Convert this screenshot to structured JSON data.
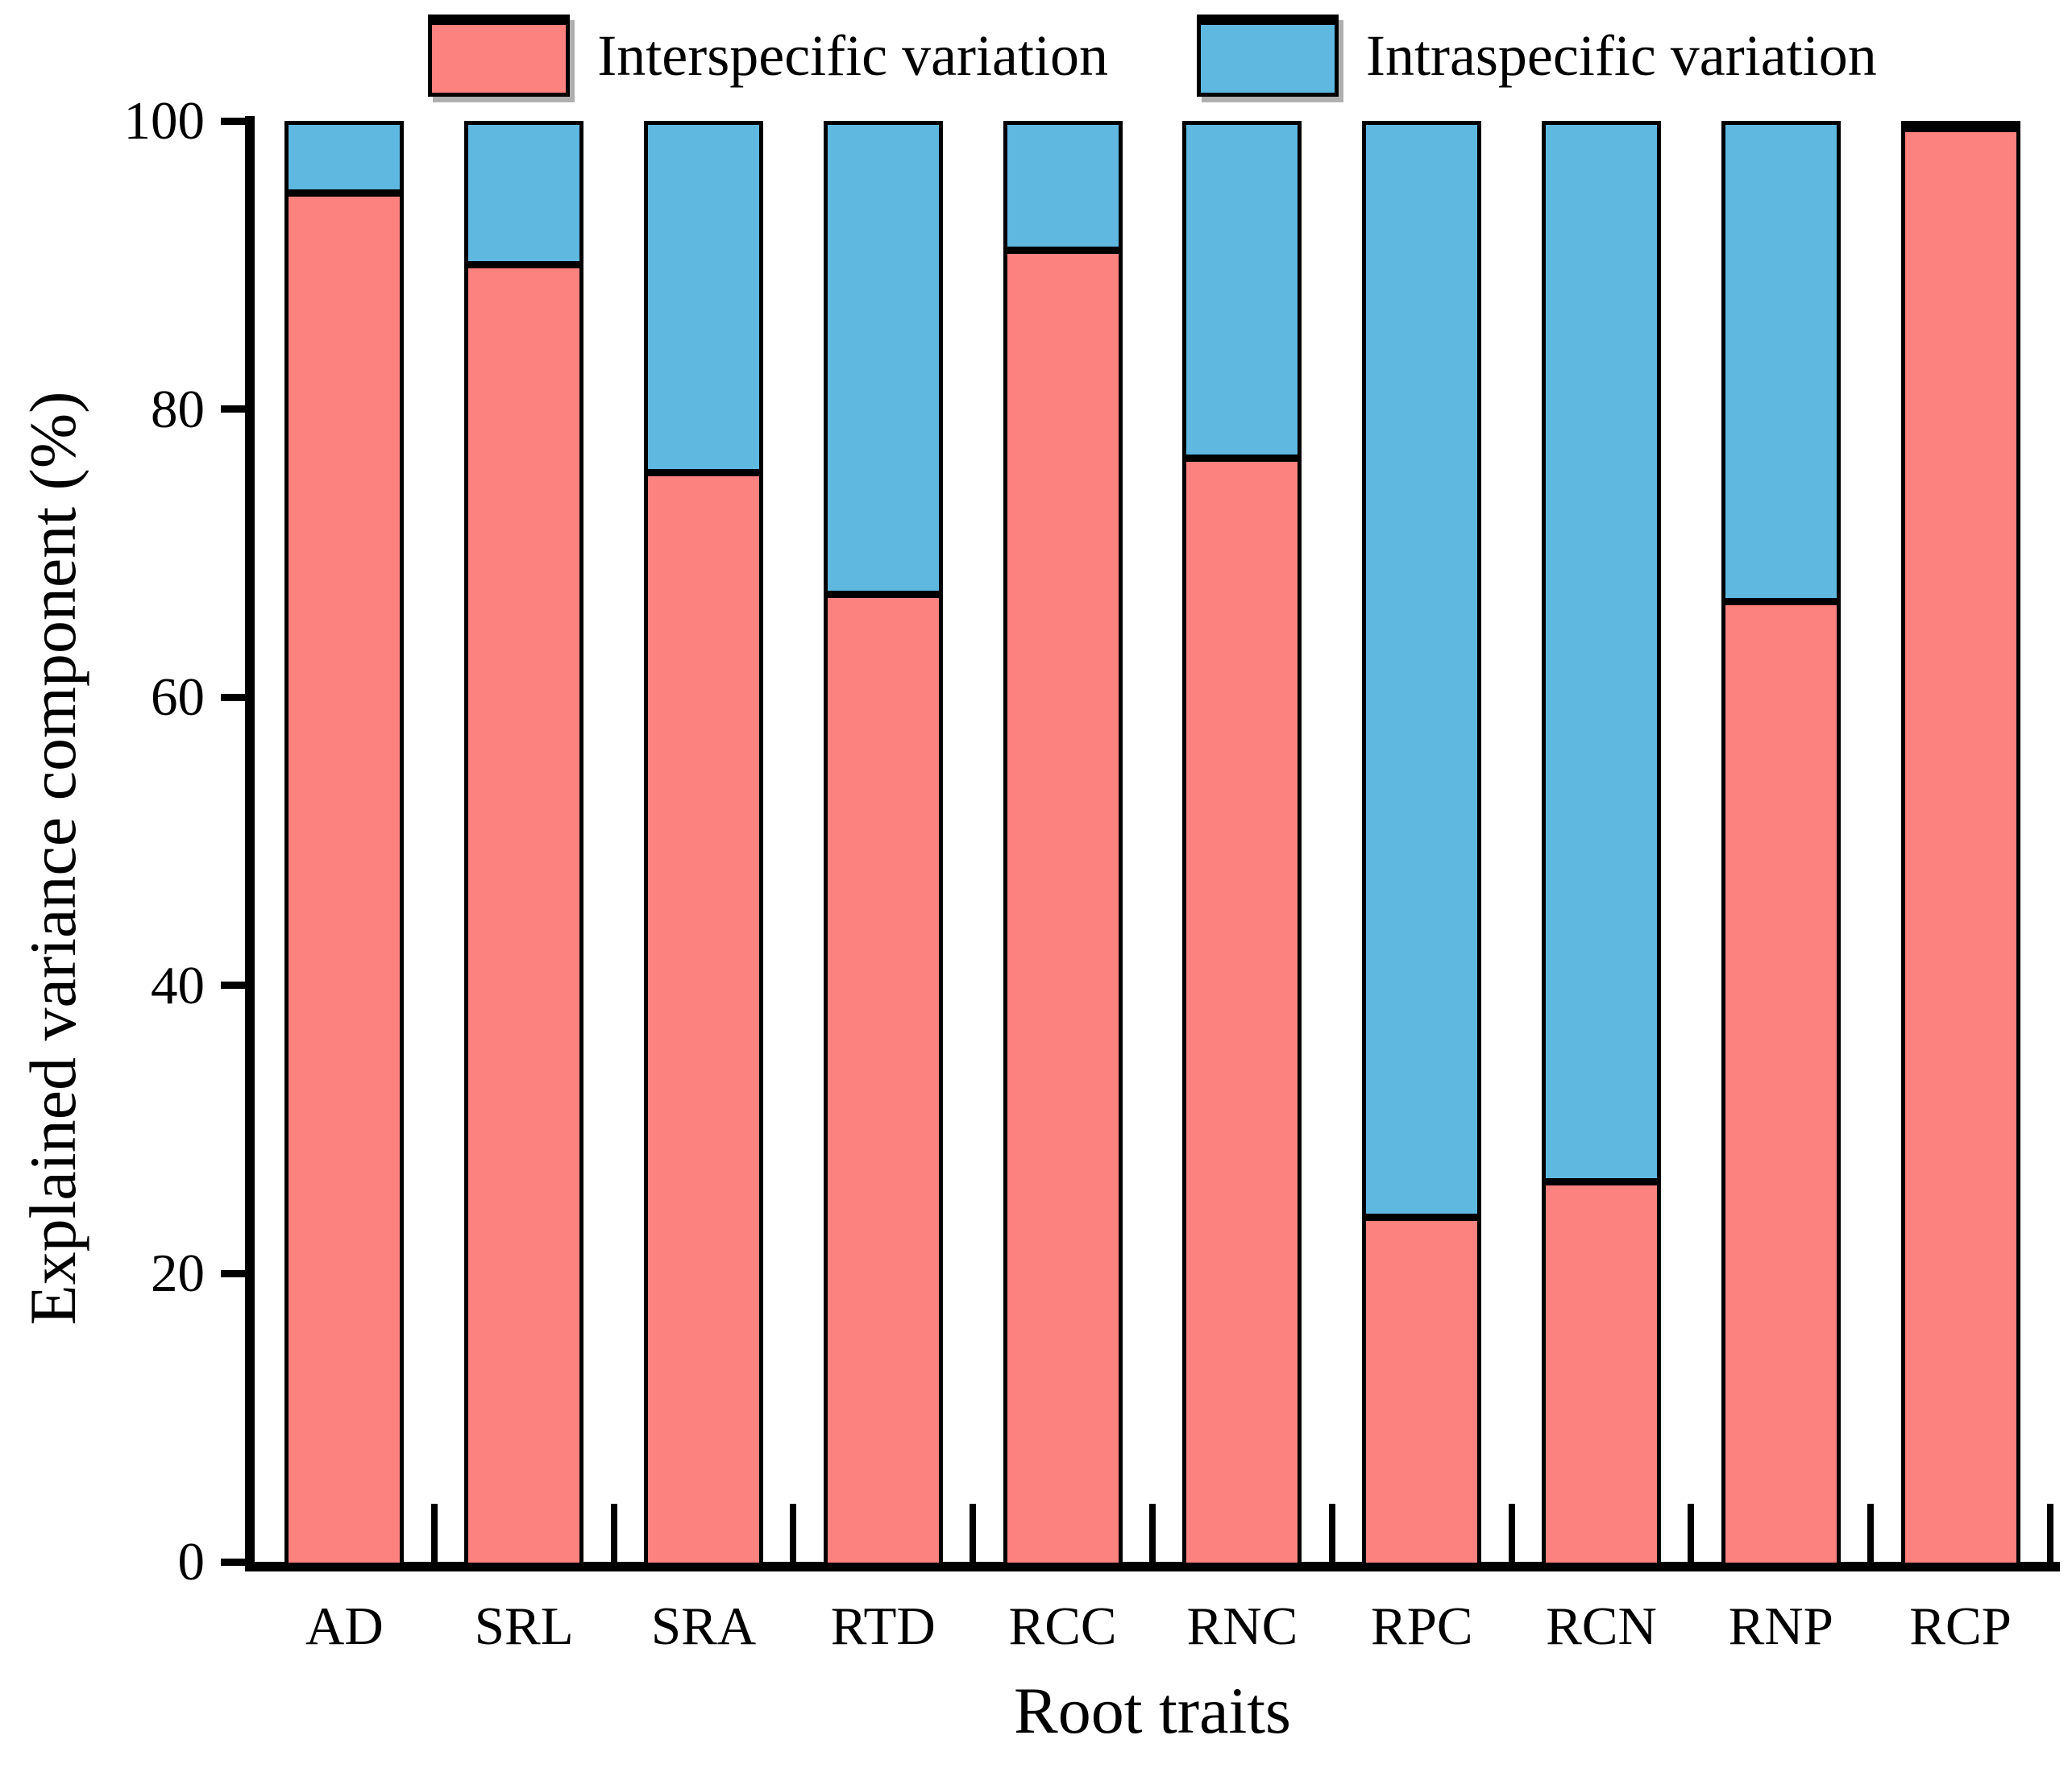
{
  "figure": {
    "background": "#ffffff",
    "axis_color": "#000000"
  },
  "legend": {
    "position": "top",
    "items": [
      {
        "label": "Interspecific variation",
        "color": "#fc827f"
      },
      {
        "label": "Intraspecific variation",
        "color": "#5fb8e0"
      }
    ]
  },
  "chart_data": {
    "type": "bar",
    "stacked": true,
    "orientation": "vertical",
    "categories": [
      "AD",
      "SRL",
      "SRA",
      "RTD",
      "RCC",
      "RNC",
      "RPC",
      "RCN",
      "RNP",
      "RCP"
    ],
    "series": [
      {
        "name": "Interspecific variation",
        "color": "#fc827f",
        "values": [
          95,
          90,
          75.5,
          67,
          91,
          76.5,
          23.5,
          26,
          66.5,
          99.5
        ]
      },
      {
        "name": "Intraspecific variation",
        "color": "#5fb8e0",
        "values": [
          5,
          10,
          24.5,
          33,
          9,
          23.5,
          76.5,
          74,
          33.5,
          0.5
        ]
      }
    ],
    "title": "",
    "xlabel": "Root traits",
    "ylabel": "Explained variance component (%)",
    "ylim": [
      0,
      100
    ],
    "yticks": [
      0,
      20,
      40,
      60,
      80,
      100
    ],
    "grid": false,
    "legend_position": "top",
    "bar_outline_color": "#000000"
  }
}
